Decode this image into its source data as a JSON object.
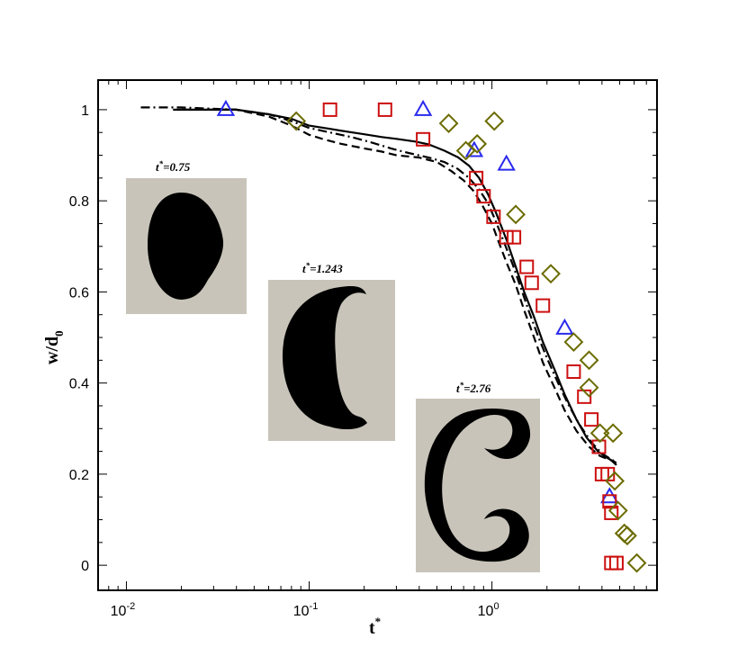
{
  "chart_data": {
    "type": "line",
    "xlabel": "t",
    "xlabel_sup": "*",
    "ylabel": "w/d",
    "ylabel_sub": "0",
    "xscale": "log",
    "xlim": [
      0.007,
      8
    ],
    "ylim": [
      -0.055,
      1.065
    ],
    "grid": false,
    "x_ticks": [
      {
        "base": "10",
        "exp": "-2",
        "value": 0.01
      },
      {
        "base": "10",
        "exp": "-1",
        "value": 0.1
      },
      {
        "base": "10",
        "exp": "0",
        "value": 1
      }
    ],
    "y_ticks": [
      {
        "label": "0",
        "value": 0
      },
      {
        "label": "0.2",
        "value": 0.2
      },
      {
        "label": "0.4",
        "value": 0.4
      },
      {
        "label": "0.6",
        "value": 0.6
      },
      {
        "label": "0.8",
        "value": 0.8
      },
      {
        "label": "1",
        "value": 1
      }
    ],
    "lines": [
      {
        "style": "solid",
        "color": "#000000",
        "points": [
          [
            0.018,
            1.0
          ],
          [
            0.04,
            1.0
          ],
          [
            0.06,
            0.99
          ],
          [
            0.08,
            0.98
          ],
          [
            0.1,
            0.965
          ],
          [
            0.13,
            0.958
          ],
          [
            0.16,
            0.952
          ],
          [
            0.2,
            0.946
          ],
          [
            0.25,
            0.94
          ],
          [
            0.3,
            0.936
          ],
          [
            0.38,
            0.93
          ],
          [
            0.45,
            0.924
          ],
          [
            0.55,
            0.91
          ],
          [
            0.65,
            0.896
          ],
          [
            0.75,
            0.877
          ],
          [
            0.85,
            0.85
          ],
          [
            0.95,
            0.815
          ],
          [
            1.05,
            0.775
          ],
          [
            1.2,
            0.715
          ],
          [
            1.35,
            0.655
          ],
          [
            1.5,
            0.6
          ],
          [
            1.7,
            0.545
          ],
          [
            1.9,
            0.49
          ],
          [
            2.2,
            0.43
          ],
          [
            2.5,
            0.375
          ],
          [
            2.9,
            0.32
          ],
          [
            3.3,
            0.28
          ],
          [
            3.8,
            0.25
          ],
          [
            4.3,
            0.235
          ],
          [
            4.8,
            0.225
          ]
        ]
      },
      {
        "style": "dashed",
        "color": "#000000",
        "points": [
          [
            0.02,
            1.0
          ],
          [
            0.04,
            1.0
          ],
          [
            0.06,
            0.985
          ],
          [
            0.08,
            0.965
          ],
          [
            0.1,
            0.945
          ],
          [
            0.12,
            0.935
          ],
          [
            0.15,
            0.925
          ],
          [
            0.2,
            0.915
          ],
          [
            0.25,
            0.908
          ],
          [
            0.3,
            0.9
          ],
          [
            0.4,
            0.895
          ],
          [
            0.5,
            0.885
          ],
          [
            0.6,
            0.865
          ],
          [
            0.7,
            0.845
          ],
          [
            0.8,
            0.82
          ],
          [
            0.9,
            0.785
          ],
          [
            1.0,
            0.75
          ],
          [
            1.1,
            0.705
          ],
          [
            1.2,
            0.665
          ],
          [
            1.35,
            0.615
          ],
          [
            1.5,
            0.56
          ],
          [
            1.7,
            0.5
          ],
          [
            1.9,
            0.445
          ],
          [
            2.2,
            0.39
          ],
          [
            2.5,
            0.34
          ],
          [
            2.9,
            0.295
          ],
          [
            3.4,
            0.26
          ],
          [
            3.9,
            0.24
          ],
          [
            4.5,
            0.23
          ],
          [
            4.8,
            0.22
          ]
        ]
      },
      {
        "style": "dashdot",
        "color": "#000000",
        "points": [
          [
            0.012,
            1.005
          ],
          [
            0.02,
            1.005
          ],
          [
            0.04,
            1.0
          ],
          [
            0.06,
            0.99
          ],
          [
            0.08,
            0.975
          ],
          [
            0.1,
            0.96
          ],
          [
            0.13,
            0.95
          ],
          [
            0.17,
            0.94
          ],
          [
            0.22,
            0.928
          ],
          [
            0.28,
            0.915
          ],
          [
            0.35,
            0.905
          ],
          [
            0.45,
            0.895
          ],
          [
            0.55,
            0.885
          ],
          [
            0.65,
            0.87
          ],
          [
            0.75,
            0.85
          ],
          [
            0.85,
            0.825
          ],
          [
            0.95,
            0.795
          ],
          [
            1.05,
            0.755
          ],
          [
            1.15,
            0.715
          ],
          [
            1.3,
            0.66
          ],
          [
            1.45,
            0.605
          ],
          [
            1.6,
            0.555
          ],
          [
            1.8,
            0.5
          ],
          [
            2.0,
            0.455
          ],
          [
            2.3,
            0.4
          ],
          [
            2.6,
            0.355
          ],
          [
            3.0,
            0.31
          ],
          [
            3.5,
            0.27
          ],
          [
            4.0,
            0.245
          ],
          [
            4.6,
            0.23
          ],
          [
            4.8,
            0.22
          ]
        ]
      }
    ],
    "markers": [
      {
        "shape": "triangle",
        "color": "#2a2aee",
        "points": [
          [
            0.035,
            1.0
          ],
          [
            0.42,
            1.0
          ],
          [
            0.8,
            0.91
          ],
          [
            1.2,
            0.88
          ],
          [
            2.5,
            0.52
          ],
          [
            4.4,
            0.15
          ]
        ]
      },
      {
        "shape": "square",
        "color": "#cc1010",
        "points": [
          [
            0.13,
            1.0
          ],
          [
            0.26,
            1.0
          ],
          [
            0.42,
            0.935
          ],
          [
            0.82,
            0.85
          ],
          [
            0.9,
            0.81
          ],
          [
            1.02,
            0.765
          ],
          [
            1.2,
            0.72
          ],
          [
            1.32,
            0.72
          ],
          [
            1.55,
            0.655
          ],
          [
            1.65,
            0.62
          ],
          [
            1.9,
            0.57
          ],
          [
            2.8,
            0.425
          ],
          [
            3.2,
            0.37
          ],
          [
            3.5,
            0.32
          ],
          [
            3.85,
            0.26
          ],
          [
            4.0,
            0.2
          ],
          [
            4.3,
            0.2
          ],
          [
            4.4,
            0.14
          ],
          [
            4.5,
            0.115
          ],
          [
            4.5,
            0.005
          ],
          [
            4.8,
            0.005
          ]
        ]
      },
      {
        "shape": "diamond",
        "color": "#6b6b00",
        "points": [
          [
            0.085,
            0.975
          ],
          [
            0.58,
            0.97
          ],
          [
            0.72,
            0.91
          ],
          [
            0.83,
            0.925
          ],
          [
            1.03,
            0.975
          ],
          [
            1.35,
            0.77
          ],
          [
            2.1,
            0.64
          ],
          [
            2.8,
            0.49
          ],
          [
            3.4,
            0.45
          ],
          [
            3.4,
            0.39
          ],
          [
            3.9,
            0.29
          ],
          [
            4.6,
            0.29
          ],
          [
            4.7,
            0.185
          ],
          [
            4.9,
            0.12
          ],
          [
            5.3,
            0.07
          ],
          [
            5.5,
            0.065
          ],
          [
            6.2,
            0.005
          ]
        ]
      }
    ],
    "insets": [
      {
        "label": "t",
        "sup": "*",
        "value": "=0.75",
        "shape": "ellipse"
      },
      {
        "label": "t",
        "sup": "*",
        "value": "=1.243",
        "shape": "bowl"
      },
      {
        "label": "t",
        "sup": "*",
        "value": "=2.76",
        "shape": "c-shape"
      }
    ]
  }
}
